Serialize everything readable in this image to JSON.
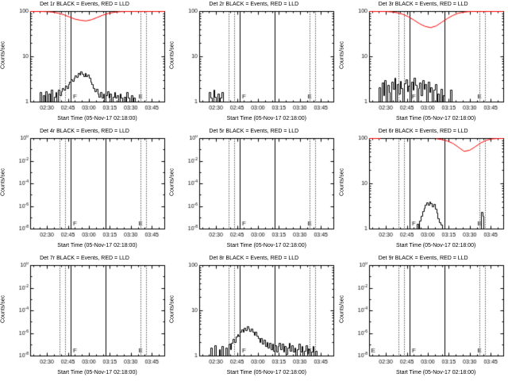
{
  "window": {
    "bg": "#ffffff",
    "fg": "#000000",
    "red": "#ff0000"
  },
  "axes": {
    "xlabel": "Start Time (05-Nov-17 02:18:00)",
    "ylabel": "Counts/sec",
    "xlim": [
      0,
      96
    ],
    "xticks": [
      12,
      27,
      42,
      57,
      72,
      87
    ],
    "xtick_labels": [
      "02:30",
      "02:45",
      "03:00",
      "03:15",
      "03:30",
      "03:45"
    ],
    "xminor_step": 5,
    "ref_lines_dotted": [
      21,
      25,
      79,
      83
    ],
    "ref_lines_solid": [
      29,
      54
    ]
  },
  "chart_data": [
    {
      "id": "det-1r",
      "type": "line",
      "title": "Det 1r BLACK = Events, RED = LLD",
      "ylog": true,
      "ylim": [
        1,
        100
      ],
      "yticks": [
        1,
        10,
        100
      ],
      "ytick_labels": [
        "1",
        "10",
        "100"
      ],
      "flags": [
        {
          "label": "F",
          "t": 32
        },
        {
          "label": "E",
          "t": 79
        }
      ],
      "series": [
        {
          "name": "events",
          "color": "#000000",
          "style": "histogram",
          "x0": 6,
          "dx": 1,
          "y": [
            1,
            1.6,
            1,
            1.4,
            1,
            1.7,
            1,
            1.5,
            1,
            1.8,
            1,
            1.3,
            1.6,
            1,
            1.8,
            1.4,
            1.7,
            2,
            1.8,
            2.2,
            2,
            2.4,
            2.8,
            3.1,
            2.9,
            3.4,
            3.8,
            3.5,
            4.2,
            3.9,
            4.6,
            4.1,
            3.7,
            4.3,
            3.6,
            3.9,
            3.3,
            2.8,
            2.4,
            2,
            1.7,
            1.9,
            1.5,
            1.3,
            1.6,
            1.2,
            1.5,
            1,
            1.4,
            1.7,
            1.2,
            1.5,
            1,
            1.3,
            1.6,
            1.2,
            1.4,
            1,
            1.5,
            1.2,
            1,
            1.3,
            1,
            1.6,
            1.2,
            1,
            1.4,
            1,
            1.2,
            1,
            1,
            1
          ]
        },
        {
          "name": "lld",
          "color": "#ff0000",
          "style": "line",
          "x0": 0,
          "dx": 4,
          "y": [
            100,
            100,
            100,
            99,
            97,
            92,
            85,
            76,
            68,
            64,
            62,
            66,
            74,
            83,
            91,
            96,
            99,
            100,
            100,
            100,
            100,
            100,
            100,
            100,
            100
          ]
        }
      ]
    },
    {
      "id": "det-2r",
      "type": "line",
      "title": "Det 2r BLACK = Events, RED = LLD",
      "ylog": true,
      "ylim": [
        1,
        100
      ],
      "yticks": [
        1,
        10,
        100
      ],
      "ytick_labels": [
        "1",
        "10",
        "100"
      ],
      "flags": [
        {
          "label": "F",
          "t": 32
        },
        {
          "label": "E",
          "t": 79
        }
      ],
      "series": [
        {
          "name": "events",
          "color": "#000000",
          "style": "histogram",
          "x0": 6,
          "dx": 1,
          "y": [
            1,
            1.6,
            1.2,
            1,
            1.8,
            1.3,
            1,
            1.5,
            1,
            1.2,
            1.6,
            1
          ]
        }
      ]
    },
    {
      "id": "det-3r",
      "type": "line",
      "title": "Det 3r BLACK = Events, RED = LLD",
      "ylog": true,
      "ylim": [
        1,
        100
      ],
      "yticks": [
        1,
        10,
        100
      ],
      "ytick_labels": [
        "1",
        "10",
        "100"
      ],
      "flags": [
        {
          "label": "F",
          "t": 32
        },
        {
          "label": "E",
          "t": 79
        }
      ],
      "series": [
        {
          "name": "events",
          "color": "#000000",
          "style": "histogram",
          "x0": 6,
          "dx": 1,
          "y": [
            1,
            2.1,
            1,
            2.6,
            1.4,
            3,
            1,
            2.3,
            1.6,
            1,
            2.8,
            1.9,
            3.3,
            1,
            2.4,
            1.5,
            2.9,
            2,
            1,
            2.5,
            3.1,
            1.7,
            2.2,
            1,
            2.7,
            1.8,
            3.4,
            2.3,
            1,
            2,
            2.6,
            1.4,
            3,
            1.9,
            2.4,
            1,
            2.8,
            1.6,
            2.1,
            1,
            1.8,
            2.4,
            1,
            1.5,
            1,
            1.9,
            1,
            1.4,
            1,
            1,
            1,
            1,
            1.8,
            1,
            1,
            1,
            1,
            1,
            1,
            1,
            1,
            1
          ]
        },
        {
          "name": "lld",
          "color": "#ff0000",
          "style": "line",
          "x0": 0,
          "dx": 4,
          "y": [
            100,
            100,
            100,
            100,
            98,
            94,
            87,
            77,
            65,
            54,
            47,
            44,
            48,
            58,
            70,
            82,
            92,
            97,
            100,
            100,
            100,
            100,
            100,
            100,
            100
          ]
        }
      ]
    },
    {
      "id": "det-4r",
      "type": "line",
      "title": "Det 4r BLACK = Events, RED = LLD",
      "ylog": true,
      "ylim": [
        1e-08,
        1
      ],
      "yticks": [
        1,
        0.01,
        0.0001,
        1e-06,
        1e-08
      ],
      "ytick_labels": [
        "10^0",
        "10^-2",
        "10^-4",
        "10^-6",
        "10^-8"
      ],
      "flags": [
        {
          "label": "F",
          "t": 32
        },
        {
          "label": "E",
          "t": 79
        }
      ],
      "series": []
    },
    {
      "id": "det-5r",
      "type": "line",
      "title": "Det 5r BLACK = Events, RED = LLD",
      "ylog": true,
      "ylim": [
        1e-08,
        1
      ],
      "yticks": [
        1,
        0.01,
        0.0001,
        1e-06,
        1e-08
      ],
      "ytick_labels": [
        "10^0",
        "10^-2",
        "10^-4",
        "10^-6",
        "10^-8"
      ],
      "flags": [
        {
          "label": "F",
          "t": 32
        },
        {
          "label": "E",
          "t": 79
        }
      ],
      "series": []
    },
    {
      "id": "det-6r",
      "type": "line",
      "title": "Det 6r BLACK = Events, RED = LLD",
      "ylog": true,
      "ylim": [
        1,
        100
      ],
      "yticks": [
        1,
        10,
        100
      ],
      "ytick_labels": [
        "1",
        "10",
        "100"
      ],
      "flags": [
        {
          "label": "F",
          "t": 32
        },
        {
          "label": "E",
          "t": 79
        }
      ],
      "series": [
        {
          "name": "events",
          "color": "#000000",
          "style": "histogram",
          "x0": 33,
          "dx": 1,
          "y": [
            1,
            1.3,
            1,
            1.5,
            1.9,
            2.4,
            2.9,
            3.3,
            3.8,
            3.4,
            4,
            3.6,
            3.1,
            3.5,
            2.8,
            2.2,
            1.7,
            1.4,
            1.2,
            1,
            1,
            1,
            1,
            1,
            1,
            1,
            1,
            1,
            1,
            1,
            1,
            1,
            1,
            1,
            1,
            1,
            1,
            1,
            1,
            1,
            1,
            1,
            1,
            1,
            1,
            1,
            1,
            2.3,
            1.9,
            1,
            1,
            1
          ]
        },
        {
          "name": "lld",
          "color": "#ff0000",
          "style": "line",
          "x0": 0,
          "dx": 4,
          "y": [
            100,
            100,
            100,
            null,
            null,
            null,
            null,
            null,
            null,
            null,
            null,
            null,
            99,
            95,
            88,
            78,
            64,
            52,
            55,
            66,
            80,
            92,
            98,
            100,
            100
          ]
        }
      ]
    },
    {
      "id": "det-7r",
      "type": "line",
      "title": "Det 7r BLACK = Events, RED = LLD",
      "ylog": true,
      "ylim": [
        1e-08,
        1
      ],
      "yticks": [
        1,
        0.01,
        0.0001,
        1e-06,
        1e-08
      ],
      "ytick_labels": [
        "10^0",
        "10^-2",
        "10^-4",
        "10^-6",
        "10^-8"
      ],
      "flags": [
        {
          "label": "F",
          "t": 32
        },
        {
          "label": "E",
          "t": 79
        }
      ],
      "series": []
    },
    {
      "id": "det-8r",
      "type": "line",
      "title": "Det 8r BLACK = Events, RED = LLD",
      "ylog": true,
      "ylim": [
        1,
        100
      ],
      "yticks": [
        1,
        10,
        100
      ],
      "ytick_labels": [
        "1",
        "10",
        "100"
      ],
      "flags": [
        {
          "label": "F",
          "t": 32
        },
        {
          "label": "E",
          "t": 79
        }
      ],
      "series": [
        {
          "name": "events",
          "color": "#000000",
          "style": "histogram",
          "x0": 6,
          "dx": 1,
          "y": [
            1,
            1,
            1.5,
            1,
            1,
            1.7,
            1,
            1,
            1.4,
            1,
            1.6,
            1,
            1,
            1.5,
            1,
            1.8,
            1.4,
            1.9,
            2.3,
            2,
            2.6,
            3,
            2.7,
            3.3,
            3.8,
            3.4,
            4.1,
            3.7,
            4.4,
            3.9,
            3.5,
            4,
            3.3,
            2.9,
            3.4,
            2.8,
            2.4,
            2,
            2.4,
            1.8,
            2.2,
            1.6,
            2,
            1.5,
            1.9,
            1.4,
            1.8,
            1.3,
            1.7,
            1.2,
            1.6,
            1.9,
            1.4,
            1.8,
            1.2,
            1.6,
            1.1,
            1.5,
            1.9,
            1.3,
            1.7,
            1.2,
            1.5,
            1,
            1.4,
            1.8,
            1.2,
            1.6,
            1,
            1.3,
            1.7,
            1.1,
            1.4,
            1,
            1.2,
            1.6,
            1,
            1.3,
            1,
            1
          ]
        }
      ]
    },
    {
      "id": "det-9r",
      "type": "line",
      "title": "Det 9r BLACK = Events, RED = LLD",
      "ylog": true,
      "ylim": [
        1e-08,
        1
      ],
      "yticks": [
        1,
        0.01,
        0.0001,
        1e-06,
        1e-08
      ],
      "ytick_labels": [
        "10^0",
        "10^-2",
        "10^-4",
        "10^-6",
        "10^-8"
      ],
      "flags": [
        {
          "label": "E",
          "t": 3
        },
        {
          "label": "F",
          "t": 32
        },
        {
          "label": "E",
          "t": 79
        }
      ],
      "series": []
    }
  ]
}
